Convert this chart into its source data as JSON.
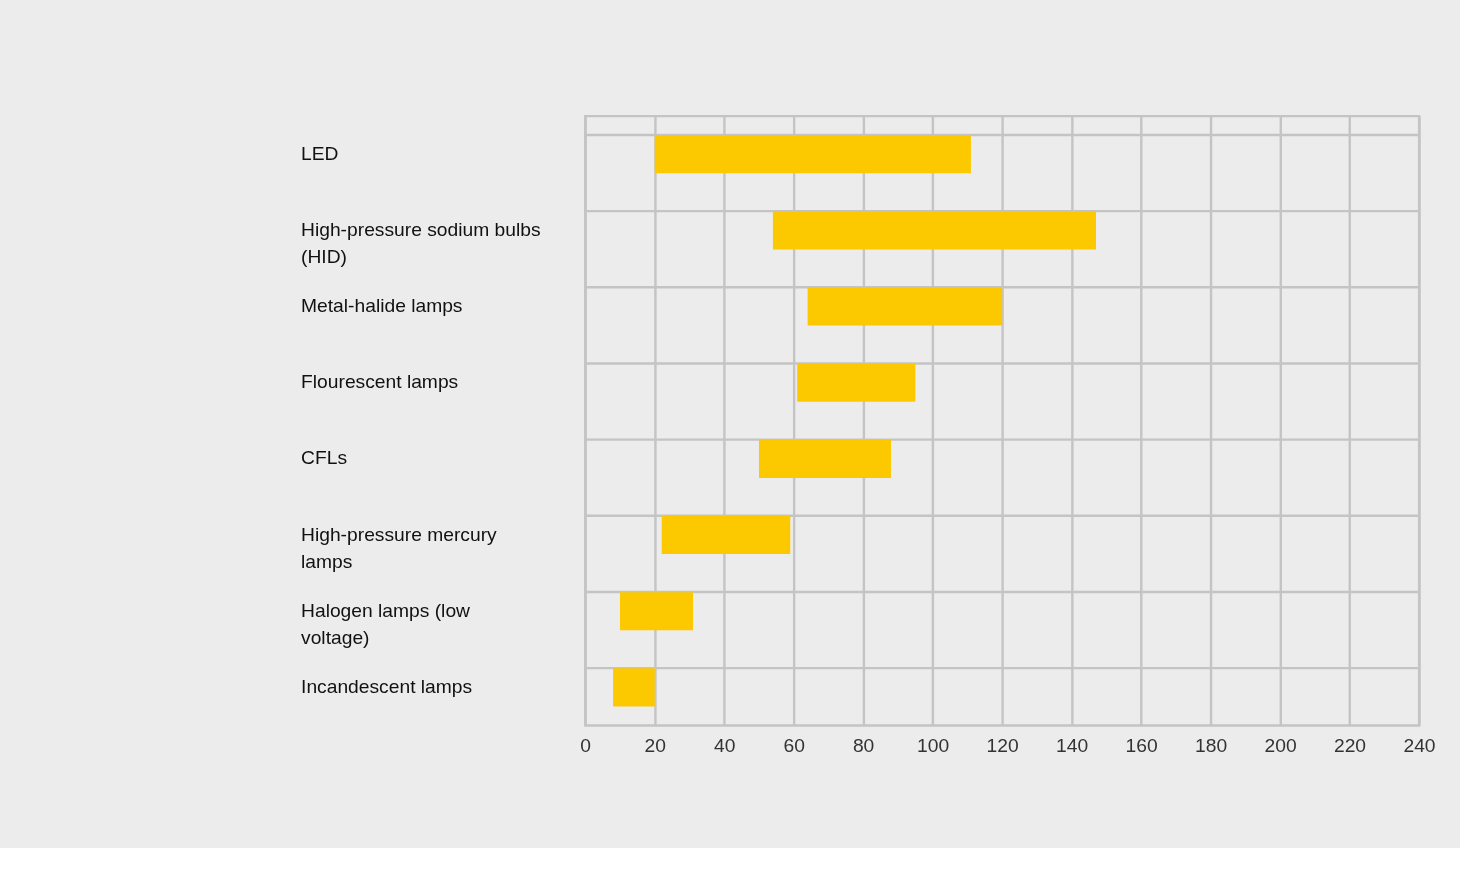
{
  "chart_data": {
    "type": "bar",
    "orientation": "horizontal",
    "categories": [
      "LED",
      "High-pressure sodium bulbs (HID)",
      "Metal-halide lamps",
      "Flourescent lamps",
      "CFLs",
      "High-pressure mercury lamps",
      "Halogen lamps (low voltage)",
      "Incandescent lamps"
    ],
    "base": [
      20,
      54,
      64,
      61,
      50,
      22,
      10,
      8
    ],
    "values": [
      91,
      93,
      56,
      34,
      38,
      37,
      21,
      12
    ],
    "color": "#fcc800",
    "xlim": [
      0,
      240
    ],
    "xticks": [
      0,
      20,
      40,
      60,
      80,
      100,
      120,
      140,
      160,
      180,
      200,
      220,
      240
    ],
    "grid": true
  }
}
